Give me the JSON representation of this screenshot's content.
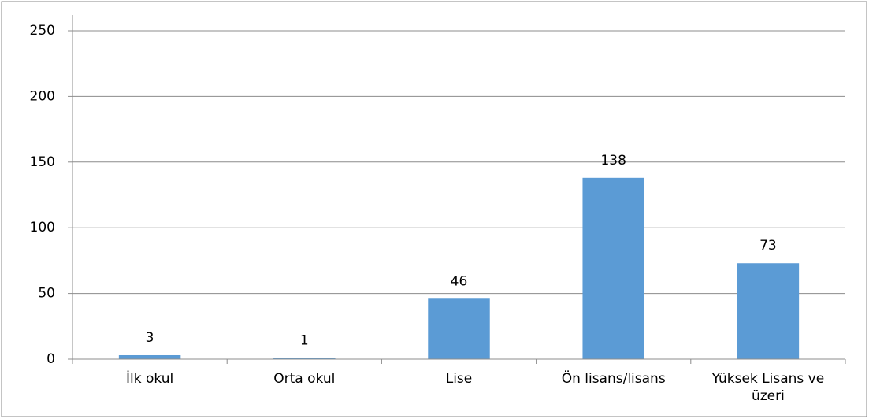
{
  "chart_data": {
    "type": "bar",
    "categories": [
      "İlk okul",
      "Orta okul",
      "Lise",
      "Ön lisans/lisans",
      "Yüksek Lisans ve üzeri"
    ],
    "values": [
      3,
      1,
      46,
      138,
      73
    ],
    "color": "#5b9bd5",
    "ylim": [
      0,
      250
    ],
    "yticks": [
      0,
      50,
      100,
      150,
      200,
      250
    ],
    "grid": true
  }
}
